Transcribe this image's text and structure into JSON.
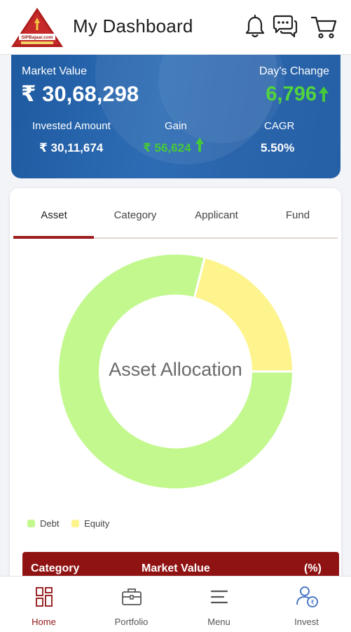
{
  "header": {
    "logo_text": "SIPBajaar.com",
    "title": "My Dashboard",
    "icons": [
      "bell-icon",
      "chat-icon",
      "cart-icon"
    ]
  },
  "summary": {
    "market_value_label": "Market Value",
    "market_value": "₹ 30,68,298",
    "days_change_label": "Day's Change",
    "days_change_value": "6,796",
    "invested_label": "Invested Amount",
    "invested_value": "₹ 30,11,674",
    "gain_label": "Gain",
    "gain_value": "₹ 56,624",
    "cagr_label": "CAGR",
    "cagr_value": "5.50%",
    "colors": {
      "positive": "#52d43b",
      "card_bg": "#2a64ab"
    }
  },
  "tabs": [
    {
      "label": "Asset",
      "active": true
    },
    {
      "label": "Category",
      "active": false
    },
    {
      "label": "Applicant",
      "active": false
    },
    {
      "label": "Fund",
      "active": false
    }
  ],
  "chart_data": {
    "type": "pie",
    "title": "Asset Allocation",
    "categories": [
      "Debt",
      "Equity"
    ],
    "values": [
      79,
      21
    ],
    "colors": [
      "#c3f88f",
      "#fdf48e"
    ]
  },
  "table": {
    "headers": [
      "Category",
      "Market Value",
      "(%)"
    ]
  },
  "bottom_nav": [
    {
      "label": "Home",
      "icon": "home-grid-icon",
      "active": true
    },
    {
      "label": "Portfolio",
      "icon": "briefcase-icon",
      "active": false
    },
    {
      "label": "Menu",
      "icon": "menu-icon",
      "active": false
    },
    {
      "label": "Invest",
      "icon": "invest-user-icon",
      "active": false
    }
  ]
}
